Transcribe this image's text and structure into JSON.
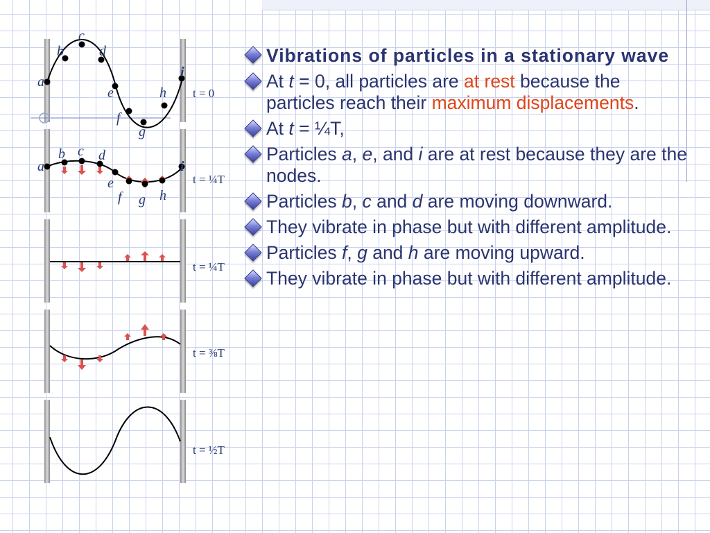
{
  "colors": {
    "text": "#2a3470",
    "highlight": "#e0441a",
    "grid": "#c9d2ee",
    "arrow": "#d9534f",
    "wave": "#000000"
  },
  "icons": {
    "bullet": "diamond-bullet-icon"
  },
  "panels": [
    {
      "time_label": "t = 0",
      "particle_labels": [
        "a",
        "b",
        "c",
        "d",
        "e",
        "f",
        "g",
        "h",
        "i"
      ]
    },
    {
      "time_label": "t = ¼T",
      "particle_labels": [
        "a",
        "b",
        "c",
        "d",
        "e",
        "f",
        "g",
        "h",
        "i"
      ]
    },
    {
      "time_label": "t = ¼T"
    },
    {
      "time_label": "t = ⅜T"
    },
    {
      "time_label": "t = ½T"
    }
  ],
  "content": {
    "title": "Vibrations of particles in a stationary wave",
    "b1": {
      "p1": "At ",
      "it1": "t",
      "p2": " = 0, all particles are ",
      "red1": "at rest",
      "p3": " because the particles reach their ",
      "red2": "maximum displacements",
      "p4": "."
    },
    "b2": {
      "p1": "At ",
      "it1": "t",
      "p2": " = ¼T,"
    },
    "b3": {
      "p1": "Particles ",
      "it1": "a",
      "p2": ", ",
      "it2": "e",
      "p3": ", and ",
      "it3": "i",
      "p4": " are at rest because they are the nodes."
    },
    "b4": {
      "p1": "Particles ",
      "it1": "b",
      "p2": ", ",
      "it2": "c",
      "p3": " and ",
      "it3": "d",
      "p4": " are moving downward."
    },
    "b5": "They vibrate in phase but with different amplitude.",
    "b6": {
      "p1": "Particles ",
      "it1": "f",
      "p2": ", ",
      "it2": "g",
      "p3": " and ",
      "it3": "h",
      "p4": " are moving upward."
    },
    "b7": "They vibrate in phase but with different amplitude."
  }
}
